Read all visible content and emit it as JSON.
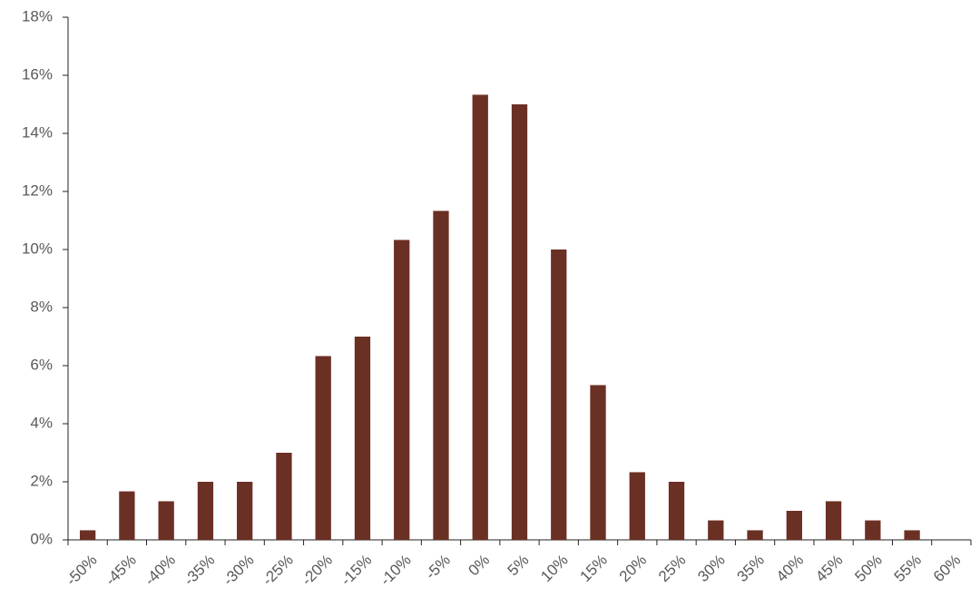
{
  "chart_data": {
    "type": "bar",
    "categories": [
      "-50%",
      "-45%",
      "-40%",
      "-35%",
      "-30%",
      "-25%",
      "-20%",
      "-15%",
      "-10%",
      "-5%",
      "0%",
      "5%",
      "10%",
      "15%",
      "20%",
      "25%",
      "30%",
      "35%",
      "40%",
      "45%",
      "50%",
      "55%",
      "60%"
    ],
    "values": [
      0.33,
      1.67,
      1.33,
      2.0,
      2.0,
      3.0,
      6.33,
      7.0,
      10.33,
      11.33,
      15.33,
      15.0,
      10.0,
      5.33,
      2.33,
      2.0,
      0.67,
      0.33,
      1.0,
      1.33,
      0.67,
      0.33,
      0
    ],
    "color": "#6b3024",
    "ylim": [
      0,
      18
    ],
    "yticks": [
      {
        "value": 0,
        "label": "0%"
      },
      {
        "value": 2,
        "label": "2%"
      },
      {
        "value": 4,
        "label": "4%"
      },
      {
        "value": 6,
        "label": "6%"
      },
      {
        "value": 8,
        "label": "8%"
      },
      {
        "value": 10,
        "label": "10%"
      },
      {
        "value": 12,
        "label": "12%"
      },
      {
        "value": 14,
        "label": "14%"
      },
      {
        "value": 16,
        "label": "16%"
      },
      {
        "value": 18,
        "label": "18%"
      }
    ],
    "grid": false
  }
}
